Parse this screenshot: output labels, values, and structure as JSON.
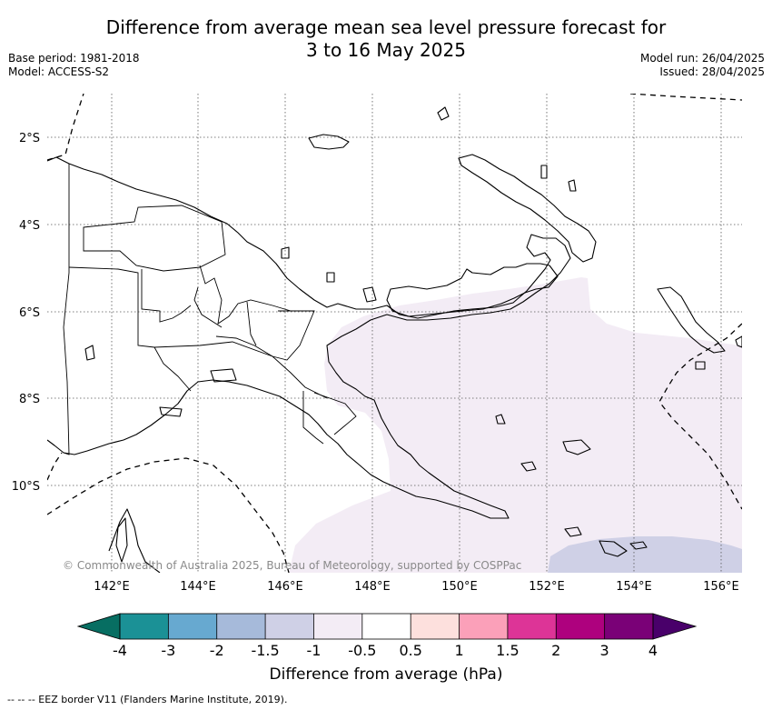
{
  "header": {
    "title_line1": "Difference from average mean sea level pressure forecast for",
    "title_line2": "3 to 16 May 2025",
    "base_period": "Base period: 1981-2018",
    "model": "Model: ACCESS-S2",
    "model_run": "Model run: 26/04/2025",
    "issued": "Issued: 28/04/2025"
  },
  "map": {
    "lat_labels": [
      "2°S",
      "4°S",
      "6°S",
      "8°S",
      "10°S"
    ],
    "lon_labels": [
      "142°E",
      "144°E",
      "146°E",
      "148°E",
      "150°E",
      "152°E",
      "154°E",
      "156°E"
    ],
    "copyright": "© Commonwealth of Australia 2025, Bureau of Meteorology, supported by COSPPac",
    "anomaly_regions": [
      {
        "name": "light-negative-anomaly",
        "range": "-1 to -0.5",
        "color": "#f3ecf5"
      },
      {
        "name": "moderate-negative-anomaly",
        "range": "-1.5 to -1",
        "color": "#cfd0e6"
      }
    ]
  },
  "colorbar": {
    "tick_labels": [
      "-4",
      "-3",
      "-2",
      "-1.5",
      "-1",
      "-0.5",
      "0.5",
      "1",
      "1.5",
      "2",
      "3",
      "4"
    ],
    "colors": [
      "#076e62",
      "#1b9196",
      "#67a9d0",
      "#a6bada",
      "#cfd0e6",
      "#f3ecf5",
      "#ffffff",
      "#fde0dd",
      "#fba0b9",
      "#dd3497",
      "#ae017e",
      "#7a0177",
      "#49006a"
    ],
    "label": "Difference from average (hPa)"
  },
  "footer": {
    "eez_note": "--  --  -- EEZ border V11 (Flanders Marine Institute, 2019)."
  }
}
